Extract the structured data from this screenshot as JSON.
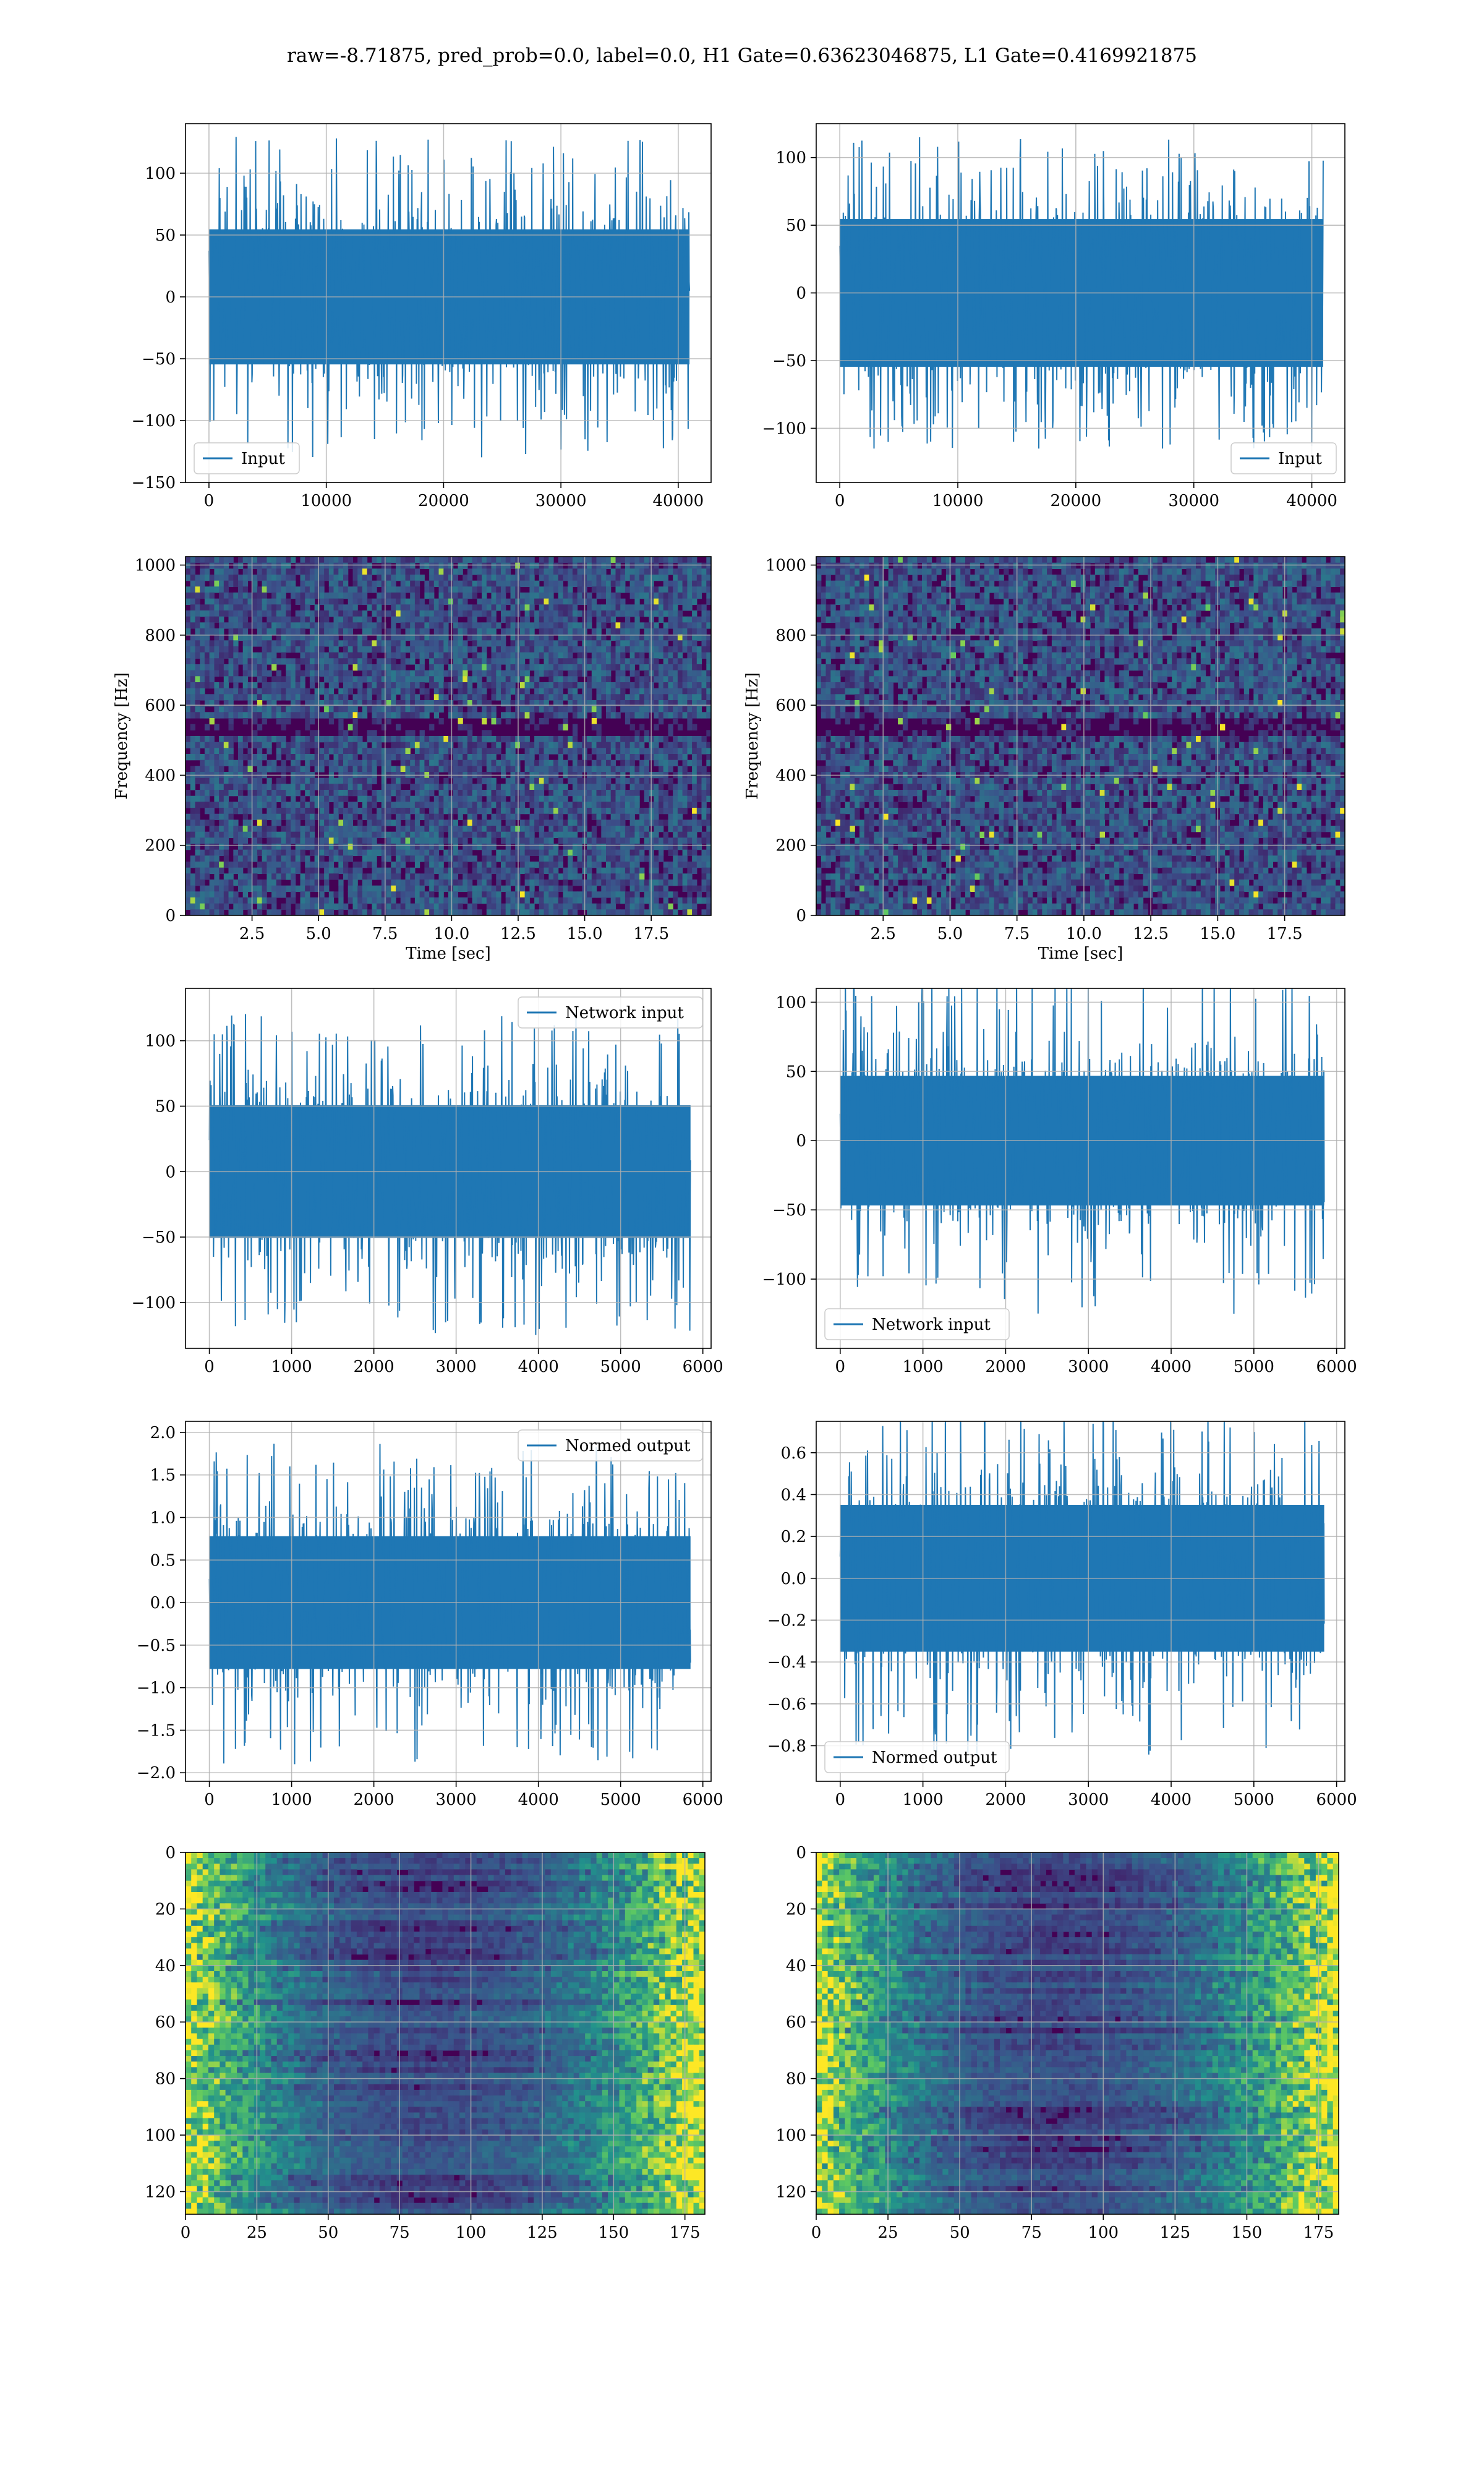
{
  "figure": {
    "suptitle": "raw=-8.71875, pred_prob=0.0, label=0.0, H1 Gate=0.63623046875, L1 Gate=0.4169921875"
  },
  "colors": {
    "line": "#1f77b4",
    "grid": "#b0b0b0",
    "viridis_dark": "#440154",
    "viridis_mid": "#21918c",
    "viridis_bright": "#fde725"
  },
  "chart_data": [
    {
      "id": "waveform-input-h1",
      "type": "line",
      "style": "noise",
      "series": [
        {
          "name": "Input"
        }
      ],
      "legend": "lower-left",
      "xlim": [
        -2000,
        42800
      ],
      "ylim": [
        -150,
        140
      ],
      "xticks": [
        0,
        10000,
        20000,
        30000,
        40000
      ],
      "yticks": [
        -150,
        -100,
        -50,
        0,
        50,
        100
      ],
      "xlabel": "",
      "ylabel": "",
      "data_x_range": [
        0,
        40960
      ],
      "amplitude_typical": 70,
      "amplitude_peak": 130,
      "grid": true
    },
    {
      "id": "waveform-input-l1",
      "type": "line",
      "style": "noise",
      "series": [
        {
          "name": "Input"
        }
      ],
      "legend": "lower-right",
      "xlim": [
        -2000,
        42800
      ],
      "ylim": [
        -140,
        125
      ],
      "xticks": [
        0,
        10000,
        20000,
        30000,
        40000
      ],
      "yticks": [
        -100,
        -50,
        0,
        50,
        100
      ],
      "xlabel": "",
      "ylabel": "",
      "data_x_range": [
        0,
        40960
      ],
      "amplitude_typical": 70,
      "amplitude_peak": 115,
      "grid": true
    },
    {
      "id": "spectrogram-h1",
      "type": "heatmap",
      "colormap": "viridis",
      "xlim": [
        0,
        19.75
      ],
      "ylim": [
        0,
        1024
      ],
      "xticks": [
        2.5,
        5.0,
        7.5,
        10.0,
        12.5,
        15.0,
        17.5
      ],
      "xtick_labels": [
        "2.5",
        "5.0",
        "7.5",
        "10.0",
        "12.5",
        "15.0",
        "17.5"
      ],
      "yticks": [
        0,
        200,
        400,
        600,
        800,
        1000
      ],
      "xlabel": "Time [sec]",
      "ylabel": "Frequency [Hz]",
      "grid": true
    },
    {
      "id": "spectrogram-l1",
      "type": "heatmap",
      "colormap": "viridis",
      "xlim": [
        0,
        19.75
      ],
      "ylim": [
        0,
        1024
      ],
      "xticks": [
        2.5,
        5.0,
        7.5,
        10.0,
        12.5,
        15.0,
        17.5
      ],
      "xtick_labels": [
        "2.5",
        "5.0",
        "7.5",
        "10.0",
        "12.5",
        "15.0",
        "17.5"
      ],
      "yticks": [
        0,
        200,
        400,
        600,
        800,
        1000
      ],
      "xlabel": "Time [sec]",
      "ylabel": "Frequency [Hz]",
      "grid": true
    },
    {
      "id": "waveform-network-h1",
      "type": "line",
      "style": "noise",
      "series": [
        {
          "name": "Network input"
        }
      ],
      "legend": "upper-right",
      "xlim": [
        -290,
        6100
      ],
      "ylim": [
        -135,
        140
      ],
      "xticks": [
        0,
        1000,
        2000,
        3000,
        4000,
        5000,
        6000
      ],
      "yticks": [
        -100,
        -50,
        0,
        50,
        100
      ],
      "xlabel": "",
      "ylabel": "",
      "data_x_range": [
        0,
        5850
      ],
      "amplitude_typical": 65,
      "amplitude_peak": 125,
      "grid": true
    },
    {
      "id": "waveform-network-l1",
      "type": "line",
      "style": "noise",
      "series": [
        {
          "name": "Network input"
        }
      ],
      "legend": "lower-left",
      "xlim": [
        -290,
        6100
      ],
      "ylim": [
        -150,
        110
      ],
      "xticks": [
        0,
        1000,
        2000,
        3000,
        4000,
        5000,
        6000
      ],
      "yticks": [
        -100,
        -50,
        0,
        50,
        100
      ],
      "xlabel": "",
      "ylabel": "",
      "data_x_range": [
        0,
        5850
      ],
      "amplitude_typical": 60,
      "amplitude_peak": 125,
      "grid": true
    },
    {
      "id": "waveform-normed-h1",
      "type": "line",
      "style": "noise",
      "series": [
        {
          "name": "Normed output"
        }
      ],
      "legend": "upper-right",
      "xlim": [
        -290,
        6100
      ],
      "ylim": [
        -2.1,
        2.13
      ],
      "xticks": [
        0,
        1000,
        2000,
        3000,
        4000,
        5000,
        6000
      ],
      "yticks": [
        -2.0,
        -1.5,
        -1.0,
        -0.5,
        0.0,
        0.5,
        1.0,
        1.5,
        2.0
      ],
      "ytick_labels": [
        "−2.0",
        "−1.5",
        "−1.0",
        "−0.5",
        "0.0",
        "0.5",
        "1.0",
        "1.5",
        "2.0"
      ],
      "xlabel": "",
      "ylabel": "",
      "data_x_range": [
        0,
        5850
      ],
      "amplitude_typical": 1.0,
      "amplitude_peak": 1.9,
      "grid": true
    },
    {
      "id": "waveform-normed-l1",
      "type": "line",
      "style": "noise",
      "series": [
        {
          "name": "Normed output"
        }
      ],
      "legend": "lower-left",
      "xlim": [
        -290,
        6100
      ],
      "ylim": [
        -0.97,
        0.75
      ],
      "xticks": [
        0,
        1000,
        2000,
        3000,
        4000,
        5000,
        6000
      ],
      "yticks": [
        -0.8,
        -0.6,
        -0.4,
        -0.2,
        0.0,
        0.2,
        0.4,
        0.6
      ],
      "ytick_labels": [
        "−0.8",
        "−0.6",
        "−0.4",
        "−0.2",
        "0.0",
        "0.2",
        "0.4",
        "0.6"
      ],
      "xlabel": "",
      "ylabel": "",
      "data_x_range": [
        0,
        5850
      ],
      "amplitude_typical": 0.45,
      "amplitude_peak": 0.85,
      "grid": true
    },
    {
      "id": "feature-map-h1",
      "type": "heatmap",
      "colormap": "viridis",
      "xlim": [
        0,
        182
      ],
      "ylim": [
        128,
        0
      ],
      "xticks": [
        0,
        25,
        50,
        75,
        100,
        125,
        150,
        175
      ],
      "yticks": [
        0,
        20,
        40,
        60,
        80,
        100,
        120
      ],
      "xlabel": "",
      "ylabel": "",
      "bright_edges": "right",
      "grid": true
    },
    {
      "id": "feature-map-l1",
      "type": "heatmap",
      "colormap": "viridis",
      "xlim": [
        0,
        182
      ],
      "ylim": [
        128,
        0
      ],
      "xticks": [
        0,
        25,
        50,
        75,
        100,
        125,
        150,
        175
      ],
      "yticks": [
        0,
        20,
        40,
        60,
        80,
        100,
        120
      ],
      "xlabel": "",
      "ylabel": "",
      "bright_edges": "right",
      "grid": true
    }
  ]
}
